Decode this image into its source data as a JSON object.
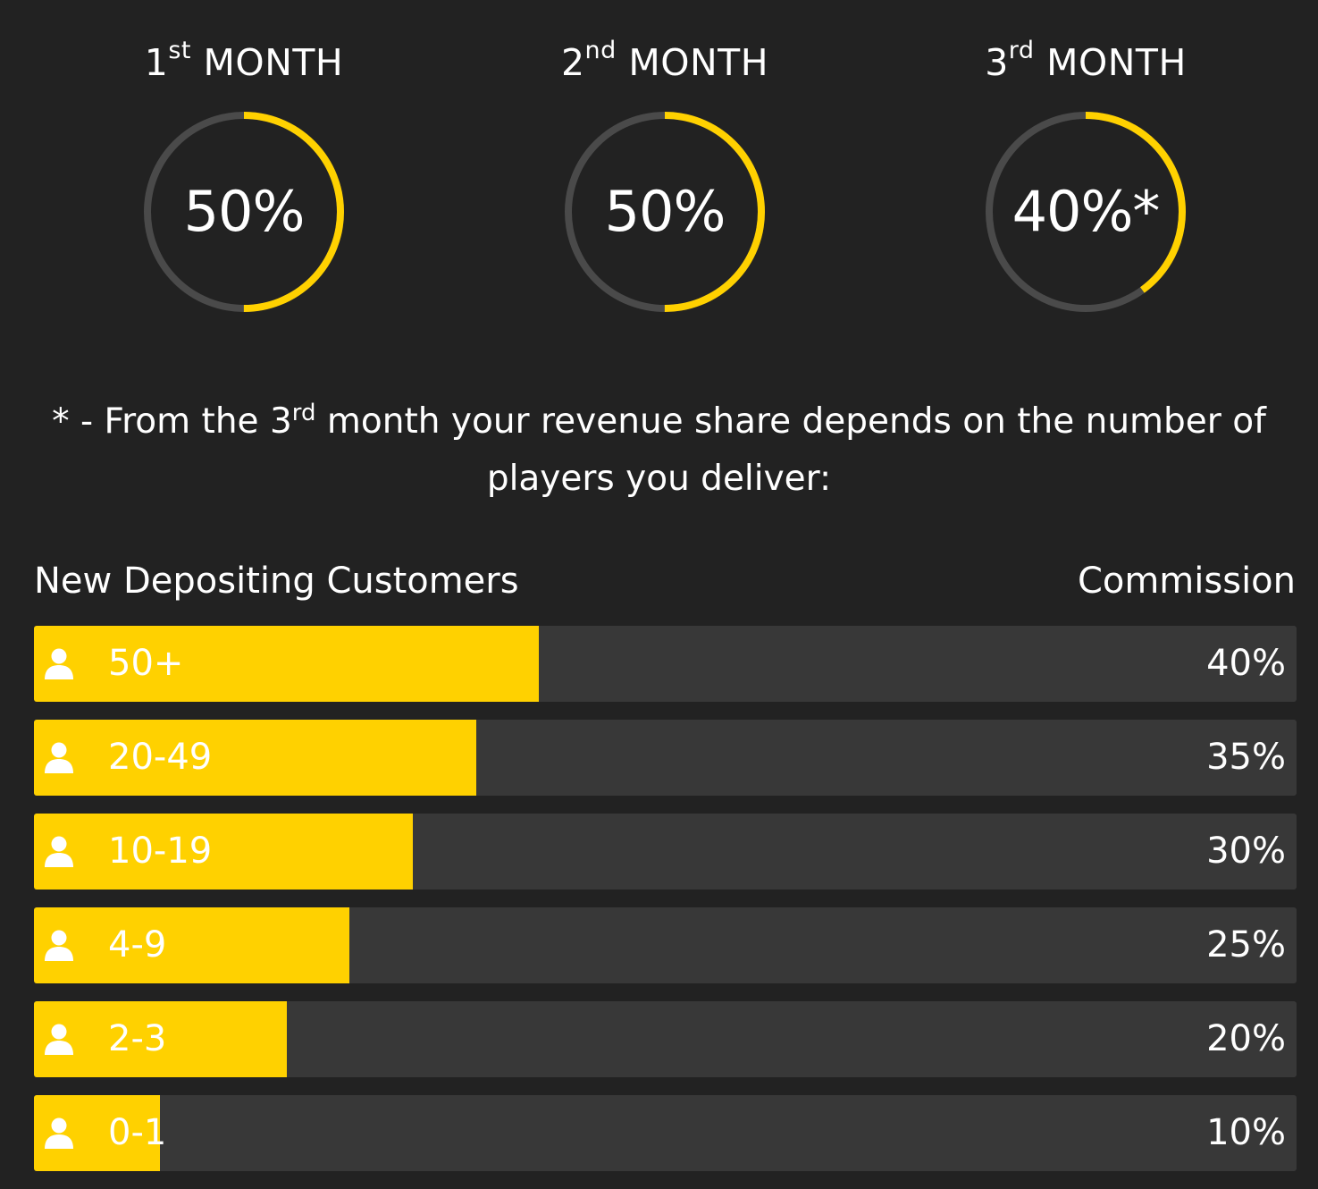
{
  "months": [
    {
      "number": "1",
      "suffix": "st",
      "word": "MONTH",
      "value": "50%",
      "progress": 0.5
    },
    {
      "number": "2",
      "suffix": "nd",
      "word": "MONTH",
      "value": "50%",
      "progress": 0.5
    },
    {
      "number": "3",
      "suffix": "rd",
      "word": "MONTH",
      "value": "40%*",
      "progress": 0.4
    }
  ],
  "note": {
    "before": "* - From the 3",
    "sup": "rd",
    "after": " month your revenue share depends on the number of players you deliver:"
  },
  "table": {
    "left_header": "New Depositing Customers",
    "right_header": "Commission",
    "tiers": [
      {
        "range": "50+",
        "commission": "40%",
        "fill": 0.4
      },
      {
        "range": "20-49",
        "commission": "35%",
        "fill": 0.35
      },
      {
        "range": "10-19",
        "commission": "30%",
        "fill": 0.3
      },
      {
        "range": "4-9",
        "commission": "25%",
        "fill": 0.25
      },
      {
        "range": "2-3",
        "commission": "20%",
        "fill": 0.2
      },
      {
        "range": "0-1",
        "commission": "10%",
        "fill": 0.1
      }
    ]
  },
  "icons": {
    "tier": "user-icon"
  },
  "colors": {
    "background": "#222222",
    "accent": "#ffd100",
    "track": "#4a4a4a",
    "bar_track": "#383838",
    "text": "#ffffff"
  }
}
